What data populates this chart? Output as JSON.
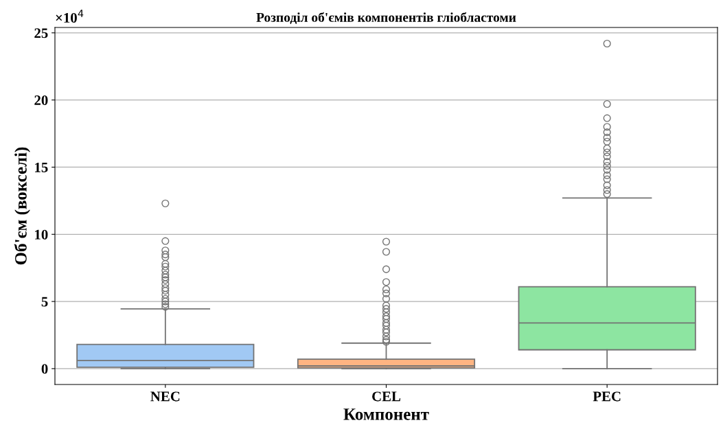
{
  "chart_data": {
    "type": "box",
    "title": "Розподіл об'ємів компонентів гліобластоми",
    "xlabel": "Компонент",
    "ylabel": "Об'єм (вокселі)",
    "categories": [
      "NEC",
      "CEL",
      "PEC"
    ],
    "colors": [
      "#a1c9f4",
      "#ffb482",
      "#8de5a1"
    ],
    "boxes": [
      {
        "low": 0,
        "q1": 0.1,
        "median": 0.6,
        "q3": 1.8,
        "high": 4.45,
        "outliers": [
          12.3,
          9.5,
          8.8,
          8.5,
          8.3,
          7.8,
          7.6,
          7.3,
          7.0,
          6.8,
          6.6,
          6.3,
          6.0,
          5.8,
          5.5,
          5.2,
          5.0,
          4.8,
          4.6
        ]
      },
      {
        "low": 0,
        "q1": 0.05,
        "median": 0.2,
        "q3": 0.7,
        "high": 1.9,
        "outliers": [
          9.45,
          8.7,
          7.4,
          6.45,
          5.9,
          5.6,
          5.2,
          4.7,
          4.45,
          4.2,
          3.9,
          3.7,
          3.4,
          3.2,
          2.9,
          2.7,
          2.4,
          2.15,
          2.0
        ]
      },
      {
        "low": 0,
        "q1": 1.4,
        "median": 3.4,
        "q3": 6.1,
        "high": 12.7,
        "outliers": [
          24.2,
          19.7,
          18.65,
          18.0,
          17.6,
          17.2,
          16.9,
          16.4,
          16.1,
          15.8,
          15.4,
          15.1,
          14.8,
          14.4,
          14.1,
          13.65,
          13.3,
          13.0
        ]
      }
    ],
    "ylim": [
      -1.18,
      25.4
    ],
    "yticks": [
      0,
      5,
      10,
      15,
      20,
      25
    ],
    "grid": "y",
    "annotations": [
      "×10$^{4}$"
    ]
  }
}
